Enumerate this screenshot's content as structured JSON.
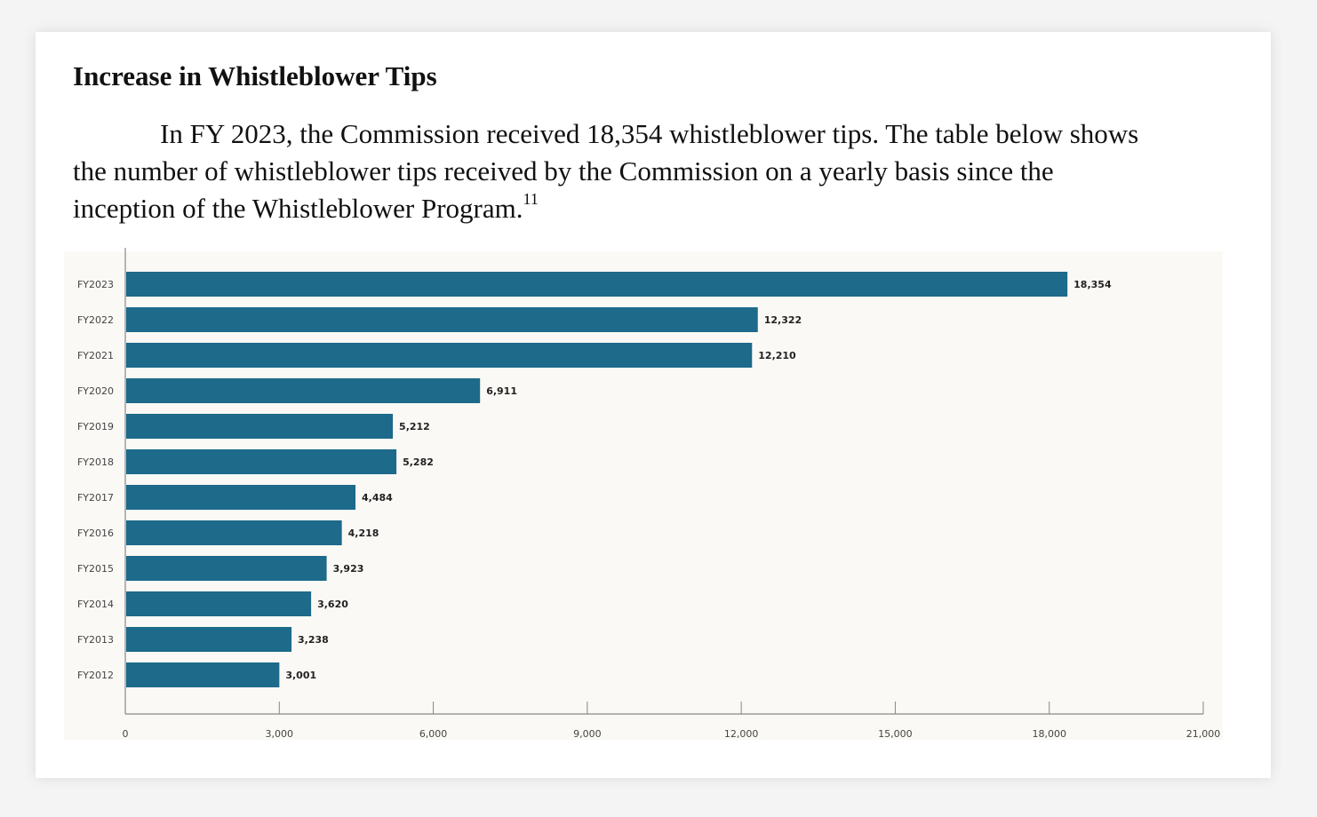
{
  "heading": "Increase in Whistleblower Tips",
  "paragraph": {
    "line1": "In FY 2023, the Commission received 18,354 whistleblower tips.  The table below shows",
    "line2": "the number of whistleblower tips received by the Commission on a yearly basis since the",
    "line3": "inception of the Whistleblower Program.",
    "footnote": "11"
  },
  "colors": {
    "bar": "#1d6a8a",
    "axis": "#888888"
  },
  "chart_data": {
    "type": "bar",
    "orientation": "horizontal",
    "categories": [
      "FY2023",
      "FY2022",
      "FY2021",
      "FY2020",
      "FY2019",
      "FY2018",
      "FY2017",
      "FY2016",
      "FY2015",
      "FY2014",
      "FY2013",
      "FY2012"
    ],
    "values": [
      18354,
      12322,
      12210,
      6911,
      5212,
      5282,
      4484,
      4218,
      3923,
      3620,
      3238,
      3001
    ],
    "value_labels": [
      "18,354",
      "12,322",
      "12,210",
      "6,911",
      "5,212",
      "5,282",
      "4,484",
      "4,218",
      "3,923",
      "3,620",
      "3,238",
      "3,001"
    ],
    "xlim": [
      0,
      21000
    ],
    "xticks": [
      0,
      3000,
      6000,
      9000,
      12000,
      15000,
      18000,
      21000
    ],
    "xtick_labels": [
      "0",
      "3,000",
      "6,000",
      "9,000",
      "12,000",
      "15,000",
      "18,000",
      "21,000"
    ],
    "title": "",
    "xlabel": "",
    "ylabel": "",
    "grid": false,
    "legend": "none"
  }
}
